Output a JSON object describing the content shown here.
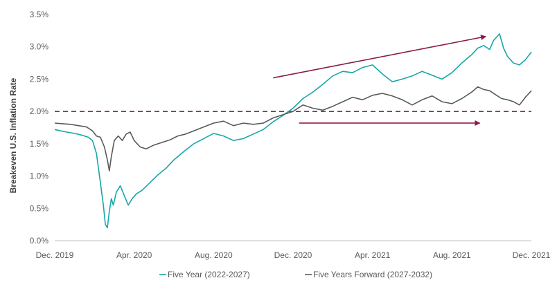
{
  "chart_data": {
    "type": "line",
    "title": "",
    "xlabel": "",
    "ylabel": "Breakeven U.S. Inflation Rate",
    "x_ticks": [
      "Dec. 2019",
      "Apr. 2020",
      "Aug. 2020",
      "Dec. 2020",
      "Apr. 2021",
      "Aug. 2021",
      "Dec. 2021"
    ],
    "y_ticks": [
      "0.0%",
      "0.5%",
      "1.0%",
      "1.5%",
      "2.0%",
      "2.5%",
      "3.0%",
      "3.5%"
    ],
    "ylim": [
      0,
      3.5
    ],
    "xlim": [
      0,
      24
    ],
    "grid": false,
    "legend_position": "bottom",
    "reference_line": {
      "y": 2.0,
      "style": "dashed",
      "color": "#7B2D6E"
    },
    "arrows": [
      {
        "from": [
          11,
          2.52
        ],
        "to": [
          21.7,
          3.16
        ],
        "color": "#8B1A4A"
      },
      {
        "from": [
          12.3,
          1.82
        ],
        "to": [
          21.4,
          1.82
        ],
        "color": "#8B1A4A"
      }
    ],
    "series": [
      {
        "name": "Five Year (2022-2027)",
        "color": "#17A6A6",
        "x": [
          0,
          0.3,
          0.6,
          1.0,
          1.4,
          1.7,
          1.9,
          2.1,
          2.3,
          2.45,
          2.55,
          2.65,
          2.75,
          2.85,
          2.95,
          3.1,
          3.3,
          3.5,
          3.7,
          3.9,
          4.1,
          4.4,
          4.8,
          5.2,
          5.6,
          6.0,
          6.5,
          7.0,
          7.5,
          8.0,
          8.5,
          9.0,
          9.5,
          10.0,
          10.5,
          11.0,
          11.5,
          12.0,
          12.5,
          13.0,
          13.5,
          14.0,
          14.5,
          15.0,
          15.5,
          16.0,
          16.5,
          17.0,
          17.5,
          18.0,
          18.5,
          19.0,
          19.5,
          20.0,
          20.5,
          21.0,
          21.3,
          21.6,
          21.9,
          22.1,
          22.4,
          22.6,
          22.8,
          23.1,
          23.4,
          23.7,
          24.0
        ],
        "y": [
          1.72,
          1.7,
          1.68,
          1.66,
          1.63,
          1.6,
          1.55,
          1.35,
          0.9,
          0.55,
          0.25,
          0.2,
          0.45,
          0.65,
          0.55,
          0.75,
          0.85,
          0.7,
          0.55,
          0.65,
          0.72,
          0.78,
          0.9,
          1.02,
          1.12,
          1.25,
          1.38,
          1.5,
          1.58,
          1.66,
          1.62,
          1.55,
          1.58,
          1.65,
          1.72,
          1.84,
          1.94,
          2.05,
          2.2,
          2.3,
          2.42,
          2.55,
          2.62,
          2.6,
          2.68,
          2.72,
          2.58,
          2.46,
          2.5,
          2.55,
          2.62,
          2.56,
          2.5,
          2.6,
          2.75,
          2.88,
          2.98,
          3.02,
          2.96,
          3.1,
          3.2,
          2.98,
          2.85,
          2.75,
          2.72,
          2.8,
          2.92
        ]
      },
      {
        "name": "Five Years Forward (2027-2032)",
        "color": "#595959",
        "x": [
          0,
          0.4,
          0.8,
          1.2,
          1.6,
          1.9,
          2.1,
          2.3,
          2.5,
          2.65,
          2.75,
          2.85,
          3.0,
          3.2,
          3.4,
          3.6,
          3.8,
          4.0,
          4.3,
          4.6,
          5.0,
          5.4,
          5.8,
          6.2,
          6.6,
          7.0,
          7.5,
          8.0,
          8.5,
          9.0,
          9.5,
          10.0,
          10.5,
          11.0,
          11.5,
          12.0,
          12.5,
          13.0,
          13.5,
          14.0,
          14.5,
          15.0,
          15.5,
          16.0,
          16.5,
          17.0,
          17.5,
          18.0,
          18.5,
          19.0,
          19.5,
          20.0,
          20.5,
          21.0,
          21.3,
          21.6,
          21.9,
          22.2,
          22.5,
          22.8,
          23.1,
          23.4,
          23.7,
          24.0
        ],
        "y": [
          1.82,
          1.81,
          1.8,
          1.78,
          1.76,
          1.7,
          1.62,
          1.6,
          1.45,
          1.25,
          1.08,
          1.3,
          1.55,
          1.62,
          1.55,
          1.65,
          1.68,
          1.55,
          1.45,
          1.42,
          1.48,
          1.52,
          1.56,
          1.62,
          1.65,
          1.7,
          1.76,
          1.82,
          1.85,
          1.78,
          1.82,
          1.8,
          1.82,
          1.9,
          1.95,
          2.0,
          2.1,
          2.05,
          2.02,
          2.08,
          2.15,
          2.22,
          2.18,
          2.25,
          2.28,
          2.24,
          2.18,
          2.1,
          2.18,
          2.24,
          2.15,
          2.12,
          2.2,
          2.3,
          2.38,
          2.34,
          2.32,
          2.26,
          2.2,
          2.18,
          2.15,
          2.1,
          2.22,
          2.32
        ]
      }
    ]
  }
}
